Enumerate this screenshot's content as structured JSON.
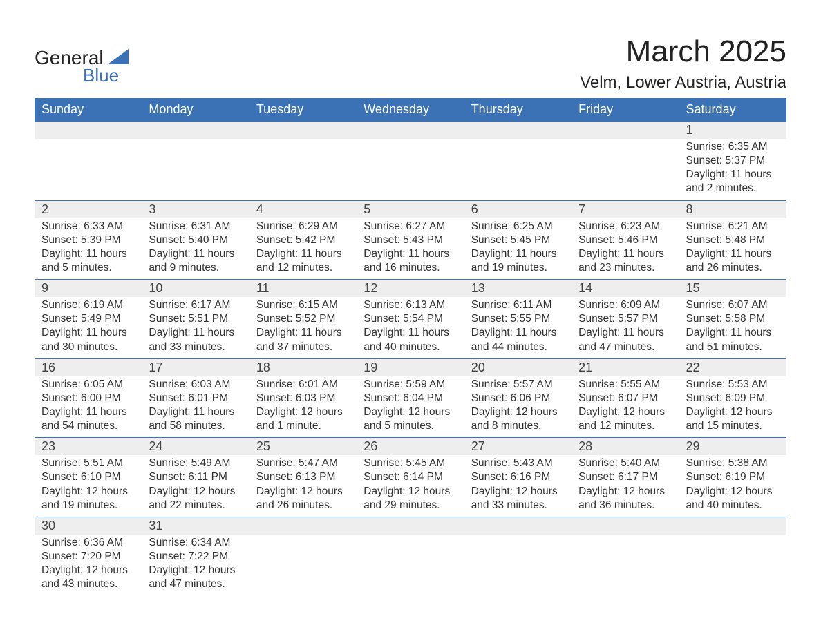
{
  "brand": {
    "word1": "General",
    "word2": "Blue",
    "accent_color": "#3a72b5"
  },
  "title": "March 2025",
  "location": "Velm, Lower Austria, Austria",
  "colors": {
    "header_bg": "#3a72b5",
    "header_text": "#ffffff",
    "daynum_bg": "#eeeeee",
    "body_text": "#333333",
    "page_bg": "#ffffff",
    "row_border": "#3a72b5"
  },
  "typography": {
    "title_fontsize_pt": 33,
    "location_fontsize_pt": 18,
    "weekday_fontsize_pt": 14,
    "daynum_fontsize_pt": 14,
    "body_fontsize_pt": 12
  },
  "weekdays": [
    "Sunday",
    "Monday",
    "Tuesday",
    "Wednesday",
    "Thursday",
    "Friday",
    "Saturday"
  ],
  "weeks": [
    [
      null,
      null,
      null,
      null,
      null,
      null,
      {
        "n": "1",
        "sunrise": "Sunrise: 6:35 AM",
        "sunset": "Sunset: 5:37 PM",
        "daylight": "Daylight: 11 hours and 2 minutes."
      }
    ],
    [
      {
        "n": "2",
        "sunrise": "Sunrise: 6:33 AM",
        "sunset": "Sunset: 5:39 PM",
        "daylight": "Daylight: 11 hours and 5 minutes."
      },
      {
        "n": "3",
        "sunrise": "Sunrise: 6:31 AM",
        "sunset": "Sunset: 5:40 PM",
        "daylight": "Daylight: 11 hours and 9 minutes."
      },
      {
        "n": "4",
        "sunrise": "Sunrise: 6:29 AM",
        "sunset": "Sunset: 5:42 PM",
        "daylight": "Daylight: 11 hours and 12 minutes."
      },
      {
        "n": "5",
        "sunrise": "Sunrise: 6:27 AM",
        "sunset": "Sunset: 5:43 PM",
        "daylight": "Daylight: 11 hours and 16 minutes."
      },
      {
        "n": "6",
        "sunrise": "Sunrise: 6:25 AM",
        "sunset": "Sunset: 5:45 PM",
        "daylight": "Daylight: 11 hours and 19 minutes."
      },
      {
        "n": "7",
        "sunrise": "Sunrise: 6:23 AM",
        "sunset": "Sunset: 5:46 PM",
        "daylight": "Daylight: 11 hours and 23 minutes."
      },
      {
        "n": "8",
        "sunrise": "Sunrise: 6:21 AM",
        "sunset": "Sunset: 5:48 PM",
        "daylight": "Daylight: 11 hours and 26 minutes."
      }
    ],
    [
      {
        "n": "9",
        "sunrise": "Sunrise: 6:19 AM",
        "sunset": "Sunset: 5:49 PM",
        "daylight": "Daylight: 11 hours and 30 minutes."
      },
      {
        "n": "10",
        "sunrise": "Sunrise: 6:17 AM",
        "sunset": "Sunset: 5:51 PM",
        "daylight": "Daylight: 11 hours and 33 minutes."
      },
      {
        "n": "11",
        "sunrise": "Sunrise: 6:15 AM",
        "sunset": "Sunset: 5:52 PM",
        "daylight": "Daylight: 11 hours and 37 minutes."
      },
      {
        "n": "12",
        "sunrise": "Sunrise: 6:13 AM",
        "sunset": "Sunset: 5:54 PM",
        "daylight": "Daylight: 11 hours and 40 minutes."
      },
      {
        "n": "13",
        "sunrise": "Sunrise: 6:11 AM",
        "sunset": "Sunset: 5:55 PM",
        "daylight": "Daylight: 11 hours and 44 minutes."
      },
      {
        "n": "14",
        "sunrise": "Sunrise: 6:09 AM",
        "sunset": "Sunset: 5:57 PM",
        "daylight": "Daylight: 11 hours and 47 minutes."
      },
      {
        "n": "15",
        "sunrise": "Sunrise: 6:07 AM",
        "sunset": "Sunset: 5:58 PM",
        "daylight": "Daylight: 11 hours and 51 minutes."
      }
    ],
    [
      {
        "n": "16",
        "sunrise": "Sunrise: 6:05 AM",
        "sunset": "Sunset: 6:00 PM",
        "daylight": "Daylight: 11 hours and 54 minutes."
      },
      {
        "n": "17",
        "sunrise": "Sunrise: 6:03 AM",
        "sunset": "Sunset: 6:01 PM",
        "daylight": "Daylight: 11 hours and 58 minutes."
      },
      {
        "n": "18",
        "sunrise": "Sunrise: 6:01 AM",
        "sunset": "Sunset: 6:03 PM",
        "daylight": "Daylight: 12 hours and 1 minute."
      },
      {
        "n": "19",
        "sunrise": "Sunrise: 5:59 AM",
        "sunset": "Sunset: 6:04 PM",
        "daylight": "Daylight: 12 hours and 5 minutes."
      },
      {
        "n": "20",
        "sunrise": "Sunrise: 5:57 AM",
        "sunset": "Sunset: 6:06 PM",
        "daylight": "Daylight: 12 hours and 8 minutes."
      },
      {
        "n": "21",
        "sunrise": "Sunrise: 5:55 AM",
        "sunset": "Sunset: 6:07 PM",
        "daylight": "Daylight: 12 hours and 12 minutes."
      },
      {
        "n": "22",
        "sunrise": "Sunrise: 5:53 AM",
        "sunset": "Sunset: 6:09 PM",
        "daylight": "Daylight: 12 hours and 15 minutes."
      }
    ],
    [
      {
        "n": "23",
        "sunrise": "Sunrise: 5:51 AM",
        "sunset": "Sunset: 6:10 PM",
        "daylight": "Daylight: 12 hours and 19 minutes."
      },
      {
        "n": "24",
        "sunrise": "Sunrise: 5:49 AM",
        "sunset": "Sunset: 6:11 PM",
        "daylight": "Daylight: 12 hours and 22 minutes."
      },
      {
        "n": "25",
        "sunrise": "Sunrise: 5:47 AM",
        "sunset": "Sunset: 6:13 PM",
        "daylight": "Daylight: 12 hours and 26 minutes."
      },
      {
        "n": "26",
        "sunrise": "Sunrise: 5:45 AM",
        "sunset": "Sunset: 6:14 PM",
        "daylight": "Daylight: 12 hours and 29 minutes."
      },
      {
        "n": "27",
        "sunrise": "Sunrise: 5:43 AM",
        "sunset": "Sunset: 6:16 PM",
        "daylight": "Daylight: 12 hours and 33 minutes."
      },
      {
        "n": "28",
        "sunrise": "Sunrise: 5:40 AM",
        "sunset": "Sunset: 6:17 PM",
        "daylight": "Daylight: 12 hours and 36 minutes."
      },
      {
        "n": "29",
        "sunrise": "Sunrise: 5:38 AM",
        "sunset": "Sunset: 6:19 PM",
        "daylight": "Daylight: 12 hours and 40 minutes."
      }
    ],
    [
      {
        "n": "30",
        "sunrise": "Sunrise: 6:36 AM",
        "sunset": "Sunset: 7:20 PM",
        "daylight": "Daylight: 12 hours and 43 minutes."
      },
      {
        "n": "31",
        "sunrise": "Sunrise: 6:34 AM",
        "sunset": "Sunset: 7:22 PM",
        "daylight": "Daylight: 12 hours and 47 minutes."
      },
      null,
      null,
      null,
      null,
      null
    ]
  ]
}
